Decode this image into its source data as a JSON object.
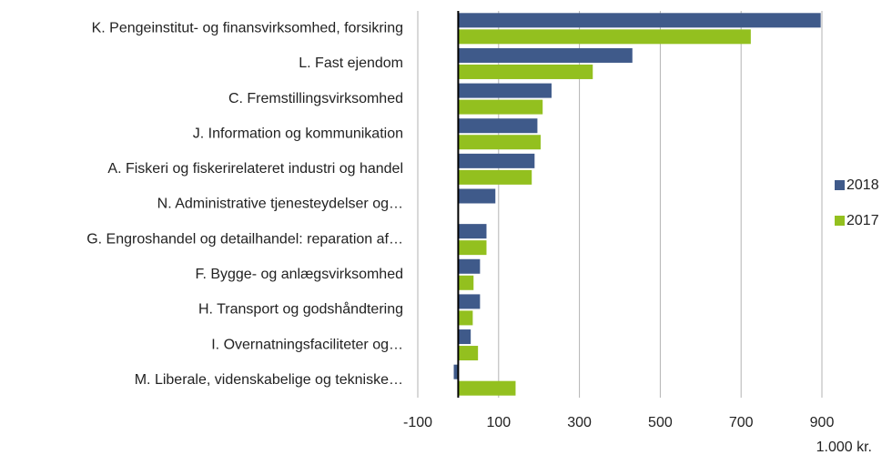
{
  "chart_data": {
    "type": "barh",
    "categories": [
      "K. Pengeinstitut- og finansvirksomhed, forsikring",
      "L. Fast ejendom",
      "C. Fremstillingsvirksomhed",
      "J. Information og kommunikation",
      "A. Fiskeri og fiskerirelateret industri og handel",
      "N. Administrative tjenesteydelser og…",
      "G. Engroshandel og detailhandel: reparation af…",
      "F. Bygge- og anlægsvirksomhed",
      "H. Transport og godshåndtering",
      "I. Overnatningsfaciliteter og…",
      "M. Liberale, videnskabelige og tekniske…"
    ],
    "series": [
      {
        "name": "2018",
        "color": "#3f5a8a",
        "values": [
          897,
          431,
          231,
          196,
          189,
          92,
          70,
          54,
          54,
          31,
          -11
        ]
      },
      {
        "name": "2017",
        "color": "#93c01f",
        "values": [
          724,
          333,
          209,
          204,
          182,
          null,
          70,
          38,
          36,
          49,
          142
        ]
      }
    ],
    "xlim": [
      -100,
      900
    ],
    "xticks": [
      -100,
      100,
      300,
      500,
      700,
      900
    ],
    "unit_label": "1.000 kr.",
    "grid": true,
    "legend": "right"
  }
}
